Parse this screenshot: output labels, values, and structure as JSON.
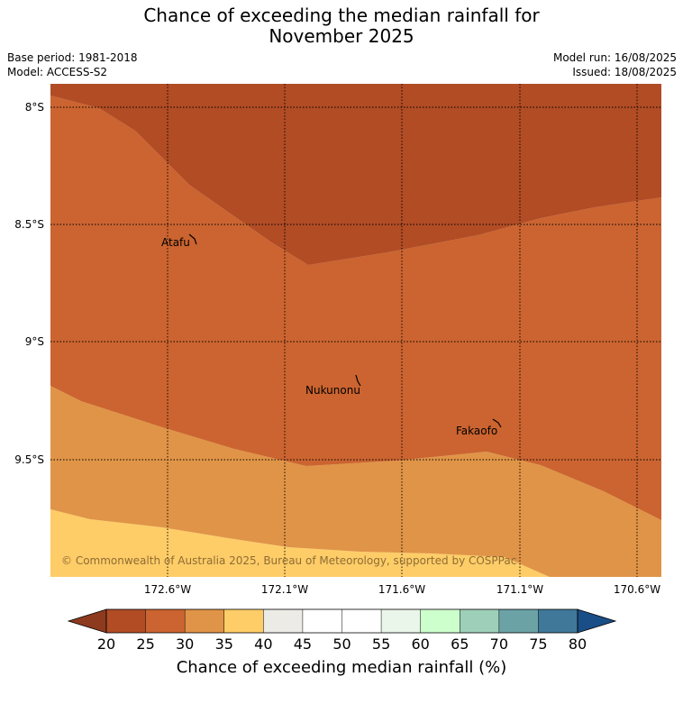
{
  "title": {
    "line1": "Chance of exceeding the median rainfall for",
    "line2": "November 2025"
  },
  "meta": {
    "base_period": "Base period: 1981-2018",
    "model": "Model: ACCESS-S2",
    "model_run": "Model run: 16/08/2025",
    "issued": "Issued: 18/08/2025"
  },
  "map": {
    "lat_labels": [
      "8°S",
      "8.5°S",
      "9°S",
      "9.5°S"
    ],
    "lon_labels": [
      "172.6°W",
      "172.1°W",
      "171.6°W",
      "171.1°W",
      "170.6°W"
    ],
    "places": [
      "Atafu",
      "Nukunonu",
      "Fakaofo"
    ],
    "copyright": "© Commonwealth of Australia 2025, Bureau of Meteorology, supported by COSPPac"
  },
  "colorbar": {
    "ticks": [
      "20",
      "25",
      "30",
      "35",
      "40",
      "45",
      "50",
      "55",
      "60",
      "65",
      "70",
      "75",
      "80"
    ],
    "colors": [
      "#8e3a1f",
      "#b14c25",
      "#cb6430",
      "#e09447",
      "#fecd68",
      "#edebe6",
      "#ffffff",
      "#ffffff",
      "#e9f6e9",
      "#ccffcc",
      "#9ecfb8",
      "#6ba2a6",
      "#3f7899",
      "#1a4e86"
    ],
    "label": "Chance of exceeding median rainfall (%)"
  }
}
